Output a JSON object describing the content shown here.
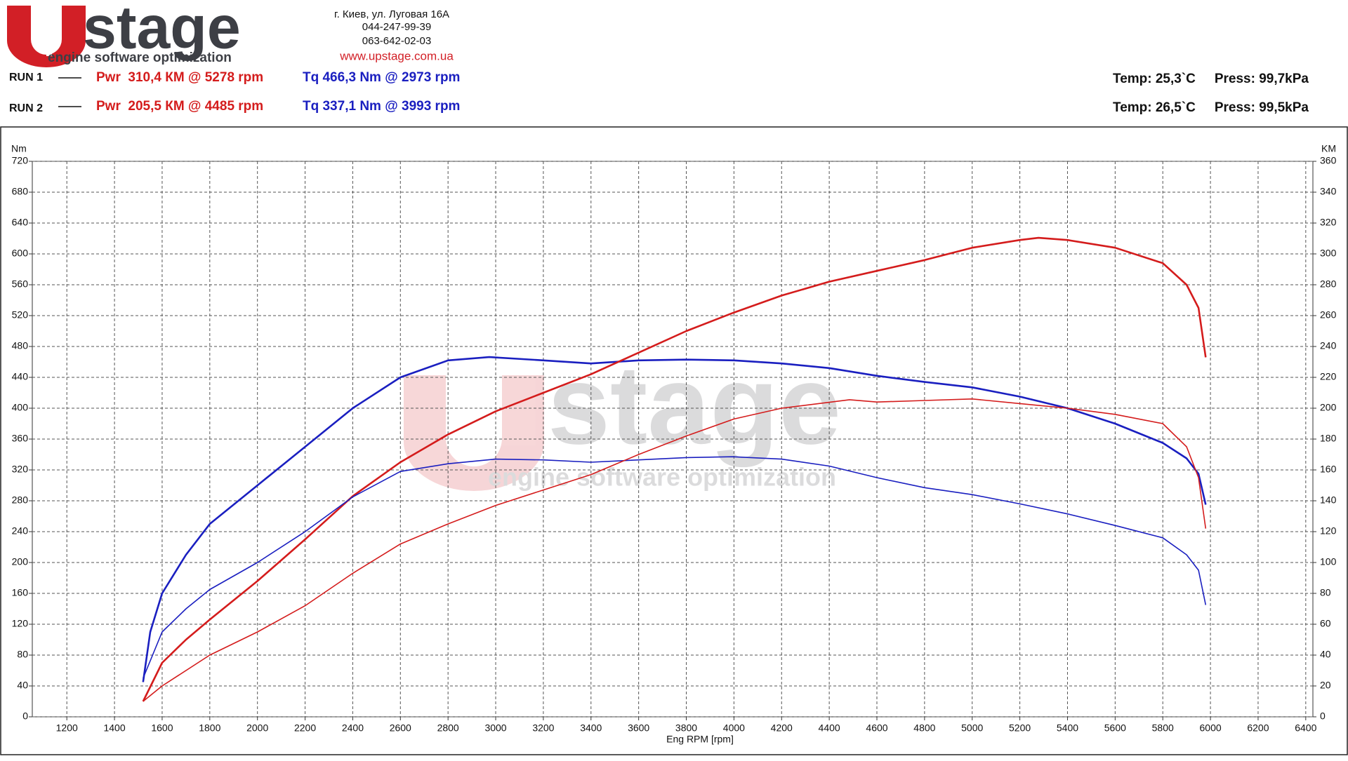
{
  "header": {
    "logo": "stage",
    "tagline": "engine software optimization",
    "address": "г. Киев, ул. Луговая 16А",
    "phones": [
      "044-247-99-39",
      "063-642-02-03"
    ],
    "website": "www.upstage.com.ua"
  },
  "chart_data": {
    "type": "line",
    "runs": [
      {
        "label": "RUN 1",
        "power": "Pwr  310,4 КМ @ 5278 rpm",
        "torque": "Tq 466,3 Nm @ 2973 rpm",
        "temp": "Temp: 25,3`C",
        "press": "Press: 99,7kPa"
      },
      {
        "label": "RUN 2",
        "power": "Pwr  205,5 КМ @ 4485 rpm",
        "torque": "Tq 337,1 Nm @ 3993 rpm",
        "temp": "Temp: 26,5`C",
        "press": "Press: 99,5kPa"
      }
    ],
    "xlabel": "Eng RPM [rpm]",
    "ylabel": "Nm",
    "y2label": "KM",
    "xlim": [
      1055,
      6430
    ],
    "ylim": [
      0,
      720
    ],
    "y2lim": [
      0,
      360
    ],
    "xticks": [
      1200,
      1400,
      1600,
      1800,
      2000,
      2200,
      2400,
      2600,
      2800,
      3000,
      3200,
      3400,
      3600,
      3800,
      4000,
      4200,
      4400,
      4600,
      4800,
      5000,
      5200,
      5400,
      5600,
      5800,
      6000,
      6200,
      6400
    ],
    "yticks": [
      0,
      40,
      80,
      120,
      160,
      200,
      240,
      280,
      320,
      360,
      400,
      440,
      480,
      520,
      560,
      600,
      640,
      680,
      720
    ],
    "y2ticks": [
      0,
      20,
      40,
      60,
      80,
      100,
      120,
      140,
      160,
      180,
      200,
      220,
      240,
      260,
      280,
      300,
      320,
      340,
      360
    ],
    "grid": true,
    "series": [
      {
        "color": "#1a1fc0",
        "width": 2.6,
        "x": [
          1520,
          1550,
          1600,
          1700,
          1800,
          2000,
          2200,
          2400,
          2600,
          2800,
          2973,
          3200,
          3400,
          3600,
          3800,
          4000,
          4200,
          4400,
          4600,
          4800,
          5000,
          5200,
          5400,
          5600,
          5800,
          5900,
          5950,
          5980
        ],
        "values": [
          45,
          110,
          160,
          210,
          250,
          300,
          350,
          400,
          440,
          462,
          466.3,
          462,
          458,
          462,
          463,
          462,
          458,
          452,
          442,
          434,
          427,
          415,
          400,
          380,
          355,
          335,
          315,
          275
        ]
      },
      {
        "color": "#d41c1c",
        "width": 2.6,
        "axis": "y2",
        "x": [
          1520,
          1600,
          1700,
          1800,
          2000,
          2200,
          2400,
          2600,
          2800,
          3000,
          3200,
          3400,
          3600,
          3800,
          4000,
          4200,
          4400,
          4600,
          4800,
          5000,
          5200,
          5278,
          5400,
          5600,
          5800,
          5900,
          5950,
          5980
        ],
        "values": [
          10,
          35,
          50,
          63,
          88,
          115,
          143,
          165,
          183,
          198,
          210,
          222,
          236,
          250,
          262,
          273,
          282,
          289,
          296,
          304,
          309,
          310.4,
          309,
          304,
          294,
          280,
          265,
          233
        ]
      },
      {
        "color": "#1a1fc0",
        "width": 1.6,
        "x": [
          1520,
          1600,
          1700,
          1800,
          2000,
          2200,
          2400,
          2600,
          2800,
          3000,
          3200,
          3400,
          3600,
          3800,
          3993,
          4200,
          4400,
          4600,
          4800,
          5000,
          5200,
          5400,
          5600,
          5800,
          5900,
          5950,
          5980
        ],
        "values": [
          50,
          110,
          140,
          165,
          200,
          240,
          285,
          318,
          328,
          334,
          333,
          330,
          333,
          336,
          337.1,
          334,
          325,
          310,
          297,
          288,
          276,
          263,
          248,
          232,
          210,
          190,
          145
        ]
      },
      {
        "color": "#d41c1c",
        "width": 1.6,
        "axis": "y2",
        "x": [
          1520,
          1600,
          1800,
          2000,
          2200,
          2400,
          2600,
          2800,
          3000,
          3200,
          3400,
          3600,
          3800,
          4000,
          4200,
          4485,
          4600,
          4800,
          5000,
          5200,
          5400,
          5600,
          5800,
          5900,
          5950,
          5980
        ],
        "values": [
          10,
          20,
          40,
          55,
          72,
          93,
          112,
          125,
          137,
          147,
          157,
          170,
          182,
          193,
          200,
          205.5,
          204,
          205,
          206,
          203,
          200,
          196,
          190,
          175,
          155,
          122
        ]
      }
    ]
  }
}
